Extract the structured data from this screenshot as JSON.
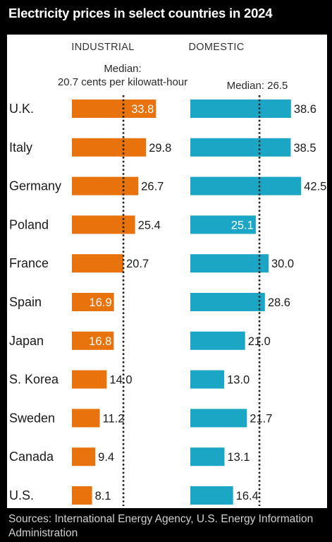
{
  "title": "Electricity prices in select countries in 2024",
  "sources": "Sources: International Energy Agency, U.S. Energy Information Administration",
  "colors": {
    "industrial": "#e8720c",
    "domestic": "#1aa6c4",
    "median_line": "#222222",
    "background": "#000000",
    "panel": "#ffffff"
  },
  "chart_data": [
    {
      "type": "bar",
      "orientation": "horizontal",
      "title": "INDUSTRIAL",
      "categories": [
        "U.K.",
        "Italy",
        "Germany",
        "Poland",
        "France",
        "Spain",
        "Japan",
        "S. Korea",
        "Sweden",
        "Canada",
        "U.S."
      ],
      "values": [
        33.8,
        29.8,
        26.7,
        25.4,
        20.7,
        16.9,
        16.8,
        14.0,
        11.2,
        9.4,
        8.1
      ],
      "value_labels": [
        "33.8",
        "29.8",
        "26.7",
        "25.4",
        "20.7",
        "16.9",
        "16.8",
        "14.0",
        "11.2",
        "9.4",
        "8.1"
      ],
      "labels_inside": [
        true,
        false,
        false,
        false,
        false,
        true,
        true,
        false,
        false,
        false,
        false
      ],
      "median": 20.7,
      "median_label": [
        "Median:",
        "20.7 cents per kilowatt-hour"
      ],
      "color": "#e8720c",
      "xlim": [
        0,
        42.5
      ]
    },
    {
      "type": "bar",
      "orientation": "horizontal",
      "title": "DOMESTIC",
      "categories": [
        "U.K.",
        "Italy",
        "Germany",
        "Poland",
        "France",
        "Spain",
        "Japan",
        "S. Korea",
        "Sweden",
        "Canada",
        "U.S."
      ],
      "values": [
        38.6,
        38.5,
        42.5,
        25.1,
        30.0,
        28.6,
        21.0,
        13.0,
        21.7,
        13.1,
        16.4
      ],
      "value_labels": [
        "38.6",
        "38.5",
        "42.5",
        "25.1",
        "30.0",
        "28.6",
        "21.0",
        "13.0",
        "21.7",
        "13.1",
        "16.4"
      ],
      "labels_inside": [
        false,
        false,
        false,
        true,
        false,
        false,
        false,
        false,
        false,
        false,
        false
      ],
      "median": 26.5,
      "median_label": [
        "Median: 26.5"
      ],
      "color": "#1aa6c4",
      "xlim": [
        0,
        42.5
      ]
    }
  ]
}
